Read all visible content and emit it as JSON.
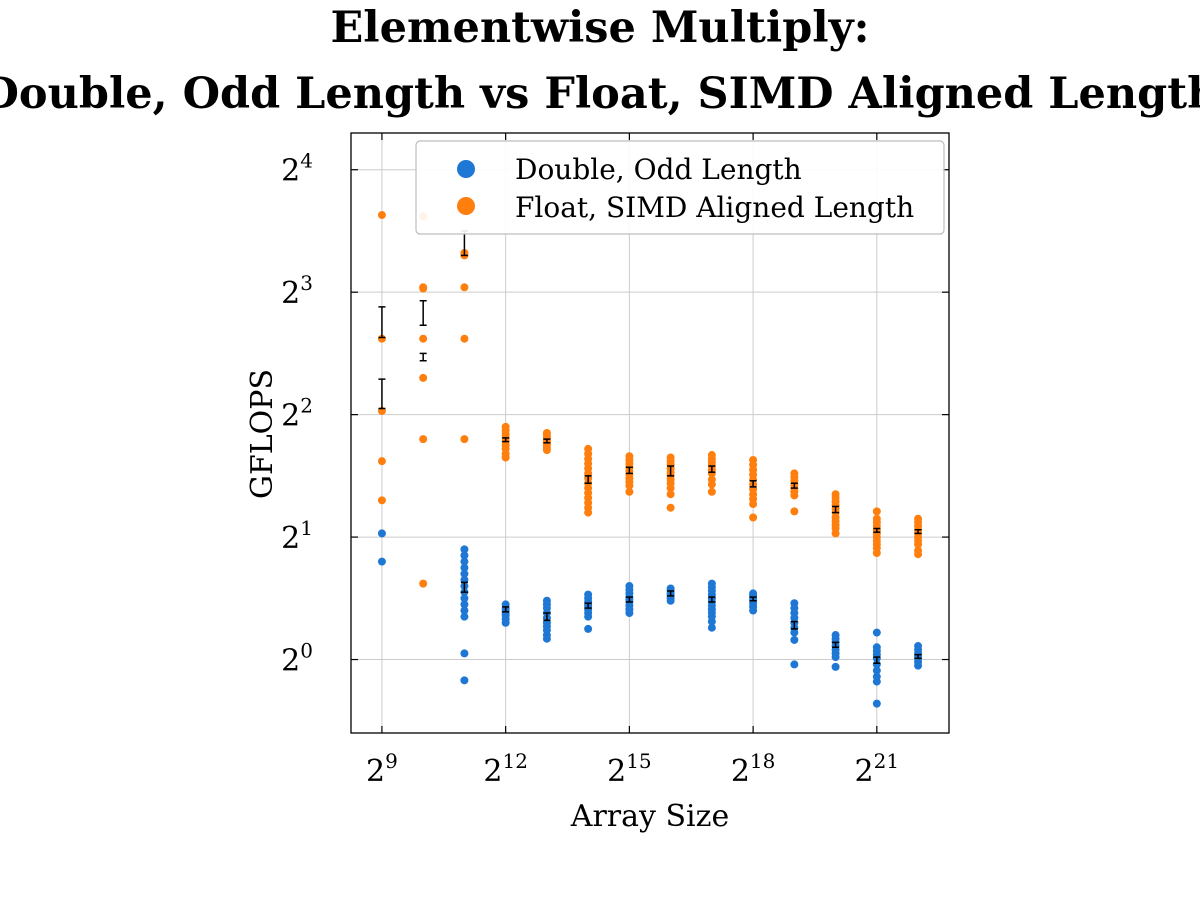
{
  "chart_data": {
    "type": "scatter",
    "title": [
      "Elementwise Multiply:",
      "Double, Odd Length vs Float, SIMD Aligned Length"
    ],
    "xlabel": "Array Size",
    "ylabel": "GFLOPS",
    "x_scale": "log2",
    "y_scale": "log2",
    "xlim_log2": [
      8.25,
      22.75
    ],
    "ylim_log2": [
      -0.6,
      4.3
    ],
    "x_ticks": [
      {
        "base": "2",
        "exp": "9",
        "log2": 9
      },
      {
        "base": "2",
        "exp": "12",
        "log2": 12
      },
      {
        "base": "2",
        "exp": "15",
        "log2": 15
      },
      {
        "base": "2",
        "exp": "18",
        "log2": 18
      },
      {
        "base": "2",
        "exp": "21",
        "log2": 21
      }
    ],
    "y_ticks": [
      {
        "base": "2",
        "exp": "0",
        "log2": 0
      },
      {
        "base": "2",
        "exp": "1",
        "log2": 1
      },
      {
        "base": "2",
        "exp": "2",
        "log2": 2
      },
      {
        "base": "2",
        "exp": "3",
        "log2": 3
      },
      {
        "base": "2",
        "exp": "4",
        "log2": 4
      }
    ],
    "grid": true,
    "legend_position": "top-right",
    "series": [
      {
        "name": "Double, Odd Length",
        "color": "#1f77d4",
        "points": [
          {
            "x_log2": 9,
            "y_log2": [
              1.03,
              0.8
            ]
          },
          {
            "x_log2": 11,
            "y_log2": [
              0.9,
              0.85,
              0.8,
              0.75,
              0.7,
              0.65,
              0.6,
              0.55,
              0.5,
              0.45,
              0.4,
              0.35,
              0.05,
              -0.17
            ]
          },
          {
            "x_log2": 12,
            "y_log2": [
              0.45,
              0.42,
              0.4,
              0.38,
              0.36,
              0.33,
              0.3
            ]
          },
          {
            "x_log2": 13,
            "y_log2": [
              0.48,
              0.45,
              0.42,
              0.38,
              0.34,
              0.3,
              0.27,
              0.24,
              0.2,
              0.17
            ]
          },
          {
            "x_log2": 14,
            "y_log2": [
              0.53,
              0.5,
              0.47,
              0.45,
              0.43,
              0.41,
              0.38,
              0.35,
              0.25
            ]
          },
          {
            "x_log2": 15,
            "y_log2": [
              0.6,
              0.57,
              0.54,
              0.51,
              0.49,
              0.47,
              0.44,
              0.41,
              0.38
            ]
          },
          {
            "x_log2": 16,
            "y_log2": [
              0.58,
              0.56,
              0.54,
              0.52,
              0.5,
              0.48
            ]
          },
          {
            "x_log2": 17,
            "y_log2": [
              0.62,
              0.59,
              0.56,
              0.53,
              0.5,
              0.47,
              0.44,
              0.41,
              0.38,
              0.35,
              0.31,
              0.26
            ]
          },
          {
            "x_log2": 18,
            "y_log2": [
              0.54,
              0.52,
              0.5,
              0.48,
              0.46,
              0.43,
              0.4
            ]
          },
          {
            "x_log2": 19,
            "y_log2": [
              0.46,
              0.42,
              0.38,
              0.34,
              0.3,
              0.26,
              0.22,
              0.16,
              -0.04
            ]
          },
          {
            "x_log2": 20,
            "y_log2": [
              0.2,
              0.17,
              0.14,
              0.11,
              0.08,
              0.05,
              0.02,
              -0.06
            ]
          },
          {
            "x_log2": 21,
            "y_log2": [
              0.22,
              0.1,
              0.07,
              0.04,
              0.01,
              -0.04,
              -0.09,
              -0.14,
              -0.18,
              -0.36
            ]
          },
          {
            "x_log2": 22,
            "y_log2": [
              0.11,
              0.08,
              0.05,
              0.03,
              0.01,
              -0.02,
              -0.05
            ]
          }
        ],
        "error_bars": [
          {
            "x_log2": 11,
            "y_log2": [
              0.55,
              0.63
            ]
          },
          {
            "x_log2": 12,
            "y_log2": [
              0.39,
              0.43
            ]
          },
          {
            "x_log2": 13,
            "y_log2": [
              0.32,
              0.38
            ]
          },
          {
            "x_log2": 14,
            "y_log2": [
              0.42,
              0.46
            ]
          },
          {
            "x_log2": 15,
            "y_log2": [
              0.47,
              0.51
            ]
          },
          {
            "x_log2": 16,
            "y_log2": [
              0.52,
              0.56
            ]
          },
          {
            "x_log2": 17,
            "y_log2": [
              0.47,
              0.51
            ]
          },
          {
            "x_log2": 18,
            "y_log2": [
              0.48,
              0.51
            ]
          },
          {
            "x_log2": 19,
            "y_log2": [
              0.25,
              0.31
            ]
          },
          {
            "x_log2": 20,
            "y_log2": [
              0.1,
              0.14
            ]
          },
          {
            "x_log2": 21,
            "y_log2": [
              -0.03,
              0.02
            ]
          },
          {
            "x_log2": 22,
            "y_log2": [
              0.01,
              0.04
            ]
          }
        ]
      },
      {
        "name": "Float, SIMD Aligned Length",
        "color": "#ff7f0e",
        "points": [
          {
            "x_log2": 9,
            "y_log2": [
              3.63,
              2.62,
              2.03,
              1.62,
              1.3
            ]
          },
          {
            "x_log2": 10,
            "y_log2": [
              3.62,
              3.04,
              3.03,
              2.62,
              2.3,
              1.8,
              0.62
            ]
          },
          {
            "x_log2": 11,
            "y_log2": [
              3.32,
              3.3,
              3.04,
              2.62,
              1.8
            ]
          },
          {
            "x_log2": 12,
            "y_log2": [
              1.9,
              1.87,
              1.84,
              1.81,
              1.78,
              1.75,
              1.72,
              1.68,
              1.65
            ]
          },
          {
            "x_log2": 13,
            "y_log2": [
              1.85,
              1.83,
              1.81,
              1.79,
              1.77,
              1.75,
              1.73,
              1.71
            ]
          },
          {
            "x_log2": 14,
            "y_log2": [
              1.72,
              1.68,
              1.64,
              1.6,
              1.56,
              1.52,
              1.48,
              1.44,
              1.4,
              1.36,
              1.32,
              1.28,
              1.24,
              1.2
            ]
          },
          {
            "x_log2": 15,
            "y_log2": [
              1.66,
              1.63,
              1.6,
              1.57,
              1.54,
              1.51,
              1.48,
              1.45,
              1.42,
              1.37
            ]
          },
          {
            "x_log2": 16,
            "y_log2": [
              1.65,
              1.62,
              1.59,
              1.56,
              1.53,
              1.5,
              1.47,
              1.44,
              1.4,
              1.35,
              1.24
            ]
          },
          {
            "x_log2": 17,
            "y_log2": [
              1.67,
              1.64,
              1.61,
              1.58,
              1.55,
              1.52,
              1.47,
              1.43,
              1.37
            ]
          },
          {
            "x_log2": 18,
            "y_log2": [
              1.63,
              1.59,
              1.55,
              1.51,
              1.47,
              1.43,
              1.39,
              1.35,
              1.31,
              1.27,
              1.16
            ]
          },
          {
            "x_log2": 19,
            "y_log2": [
              1.52,
              1.49,
              1.46,
              1.43,
              1.4,
              1.37,
              1.34,
              1.21
            ]
          },
          {
            "x_log2": 20,
            "y_log2": [
              1.35,
              1.32,
              1.29,
              1.26,
              1.23,
              1.2,
              1.16,
              1.13,
              1.1,
              1.07,
              1.03
            ]
          },
          {
            "x_log2": 21,
            "y_log2": [
              1.21,
              1.15,
              1.12,
              1.09,
              1.06,
              1.03,
              1.0,
              0.97,
              0.94,
              0.91,
              0.87
            ]
          },
          {
            "x_log2": 22,
            "y_log2": [
              1.15,
              1.12,
              1.09,
              1.06,
              1.03,
              1.0,
              0.97,
              0.94,
              0.89,
              0.86
            ]
          }
        ],
        "error_bars": [
          {
            "x_log2": 9,
            "y_log2": [
              2.05,
              2.29
            ]
          },
          {
            "x_log2": 10,
            "y_log2": [
              2.44,
              2.5
            ]
          },
          {
            "x_log2": 12,
            "y_log2": [
              1.78,
              1.81
            ]
          },
          {
            "x_log2": 13,
            "y_log2": [
              1.77,
              1.8
            ]
          },
          {
            "x_log2": 14,
            "y_log2": [
              1.44,
              1.5
            ]
          },
          {
            "x_log2": 15,
            "y_log2": [
              1.52,
              1.57
            ]
          },
          {
            "x_log2": 16,
            "y_log2": [
              1.5,
              1.58
            ]
          },
          {
            "x_log2": 17,
            "y_log2": [
              1.53,
              1.58
            ]
          },
          {
            "x_log2": 18,
            "y_log2": [
              1.41,
              1.46
            ]
          },
          {
            "x_log2": 19,
            "y_log2": [
              1.4,
              1.44
            ]
          },
          {
            "x_log2": 20,
            "y_log2": [
              1.2,
              1.25
            ]
          },
          {
            "x_log2": 21,
            "y_log2": [
              1.04,
              1.07
            ]
          },
          {
            "x_log2": 22,
            "y_log2": [
              1.03,
              1.06
            ]
          }
        ]
      }
    ],
    "extra_error_bars": [
      {
        "x_log2": 9,
        "y_log2": [
          2.63,
          2.88
        ]
      },
      {
        "x_log2": 10,
        "y_log2": [
          2.73,
          2.93
        ]
      },
      {
        "x_log2": 11,
        "y_log2": [
          3.3,
          3.5
        ]
      }
    ]
  }
}
